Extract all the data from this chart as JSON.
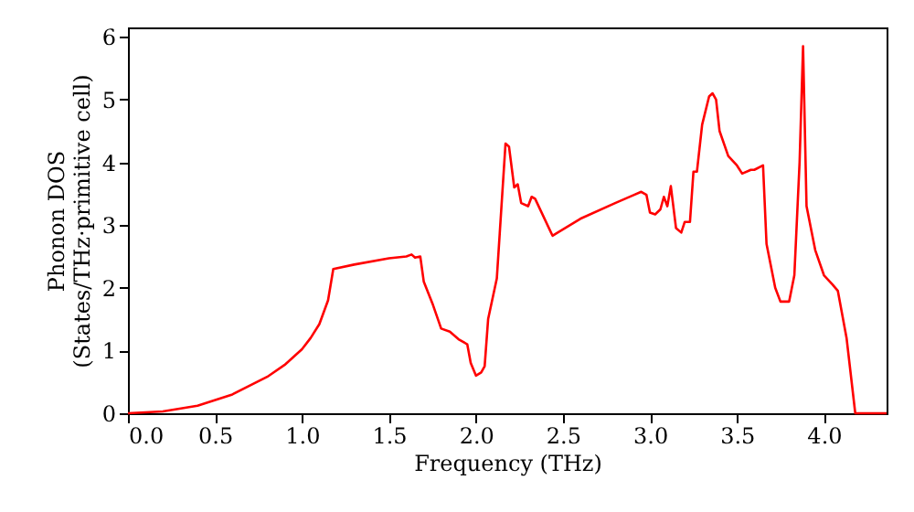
{
  "chart_data": {
    "type": "line",
    "xlabel": "Frequency (THz)",
    "ylabel": "Phonon DOS\n(States/THz·primitive cell)",
    "xlim": [
      0,
      4.36
    ],
    "ylim": [
      0,
      6.15
    ],
    "xticks": [
      {
        "value": 0,
        "label": "0.0"
      },
      0.5,
      {
        "value": 1,
        "label": "1.0"
      },
      1.5,
      {
        "value": 2,
        "label": "2.0"
      },
      2.5,
      {
        "value": 3,
        "label": "3.0"
      },
      3.5,
      {
        "value": 4,
        "label": "4.0"
      }
    ],
    "yticks": [
      0,
      1,
      2,
      3,
      4,
      5,
      6
    ],
    "grid": false,
    "marker": "none",
    "line_style": "solid",
    "series": [
      {
        "color": "#ff0000",
        "x": [
          0,
          0.2,
          0.4,
          0.6,
          0.8,
          0.9,
          1.0,
          1.05,
          1.1,
          1.15,
          1.18,
          1.3,
          1.5,
          1.6,
          1.63,
          1.65,
          1.68,
          1.7,
          1.75,
          1.8,
          1.85,
          1.9,
          1.95,
          1.97,
          2.0,
          2.03,
          2.05,
          2.07,
          2.12,
          2.17,
          2.19,
          2.22,
          2.24,
          2.26,
          2.3,
          2.32,
          2.34,
          2.44,
          2.6,
          2.8,
          2.9,
          2.95,
          2.98,
          3.0,
          3.03,
          3.06,
          3.08,
          3.1,
          3.12,
          3.15,
          3.18,
          3.2,
          3.23,
          3.25,
          3.27,
          3.3,
          3.34,
          3.36,
          3.38,
          3.4,
          3.45,
          3.5,
          3.53,
          3.58,
          3.6,
          3.65,
          3.67,
          3.72,
          3.75,
          3.8,
          3.83,
          3.86,
          3.88,
          3.9,
          3.95,
          4.0,
          4.05,
          4.08,
          4.13,
          4.18,
          4.36
        ],
        "values": [
          0,
          0.03,
          0.12,
          0.3,
          0.58,
          0.77,
          1.02,
          1.2,
          1.42,
          1.8,
          2.3,
          2.37,
          2.47,
          2.5,
          2.53,
          2.48,
          2.5,
          2.1,
          1.75,
          1.35,
          1.3,
          1.18,
          1.1,
          0.8,
          0.6,
          0.65,
          0.75,
          1.5,
          2.15,
          4.3,
          4.25,
          3.6,
          3.65,
          3.35,
          3.3,
          3.45,
          3.42,
          2.83,
          3.1,
          3.35,
          3.47,
          3.53,
          3.48,
          3.2,
          3.17,
          3.25,
          3.45,
          3.3,
          3.62,
          2.95,
          2.88,
          3.05,
          3.05,
          3.85,
          3.85,
          4.6,
          5.05,
          5.1,
          5.0,
          4.5,
          4.1,
          3.95,
          3.82,
          3.88,
          3.88,
          3.95,
          2.7,
          2.0,
          1.78,
          1.78,
          2.2,
          4.0,
          5.85,
          3.3,
          2.6,
          2.2,
          2.05,
          1.95,
          1.2,
          0,
          0
        ]
      }
    ]
  }
}
